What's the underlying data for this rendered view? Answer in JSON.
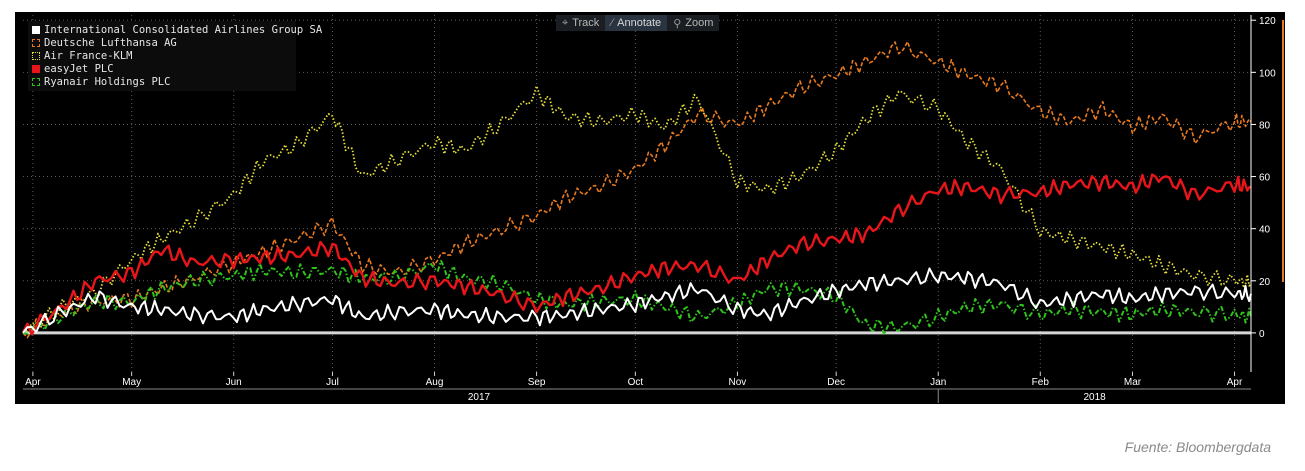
{
  "toolbar": {
    "track_label": "Track",
    "annotate_label": "Annotate",
    "zoom_label": "Zoom"
  },
  "source": "Fuente: Bloombergdata",
  "chart_data": {
    "type": "line",
    "ylim": [
      -15,
      122
    ],
    "yticks": [
      0,
      20,
      40,
      60,
      80,
      100,
      120
    ],
    "grid": true,
    "legend_position": "top-left",
    "x_range": [
      "2017-03-29",
      "2018-04-06"
    ],
    "month_ticks": [
      {
        "label": "Apr",
        "date": "2017-04-01"
      },
      {
        "label": "May",
        "date": "2017-05-01"
      },
      {
        "label": "Jun",
        "date": "2017-06-01"
      },
      {
        "label": "Jul",
        "date": "2017-07-01"
      },
      {
        "label": "Aug",
        "date": "2017-08-01"
      },
      {
        "label": "Sep",
        "date": "2017-09-01"
      },
      {
        "label": "Oct",
        "date": "2017-10-01"
      },
      {
        "label": "Nov",
        "date": "2017-11-01"
      },
      {
        "label": "Dec",
        "date": "2017-12-01"
      },
      {
        "label": "Jan",
        "date": "2018-01-01"
      },
      {
        "label": "Feb",
        "date": "2018-02-01"
      },
      {
        "label": "Mar",
        "date": "2018-03-01"
      },
      {
        "label": "Apr",
        "date": "2018-04-01"
      }
    ],
    "year_labels": [
      {
        "label": "2017",
        "from": "2017-03-29",
        "to": "2017-12-31"
      },
      {
        "label": "2018",
        "from": "2018-01-01",
        "to": "2018-04-06"
      }
    ],
    "series": [
      {
        "name": "International Consolidated Airlines Group SA",
        "color": "#ffffff",
        "style": "solid",
        "width": 2,
        "x": [
          "2017-03-29",
          "2017-04-10",
          "2017-04-20",
          "2017-05-01",
          "2017-05-10",
          "2017-05-20",
          "2017-06-01",
          "2017-06-10",
          "2017-06-20",
          "2017-07-01",
          "2017-07-10",
          "2017-07-20",
          "2017-08-01",
          "2017-08-10",
          "2017-08-20",
          "2017-09-01",
          "2017-09-10",
          "2017-09-20",
          "2017-10-01",
          "2017-10-10",
          "2017-10-20",
          "2017-11-01",
          "2017-11-10",
          "2017-11-20",
          "2017-12-01",
          "2017-12-10",
          "2017-12-20",
          "2018-01-01",
          "2018-01-10",
          "2018-01-20",
          "2018-02-01",
          "2018-02-10",
          "2018-02-20",
          "2018-03-01",
          "2018-03-10",
          "2018-03-20",
          "2018-04-01",
          "2018-04-06"
        ],
        "values": [
          0,
          8,
          14,
          10,
          9,
          7,
          6,
          9,
          11,
          13,
          6,
          8,
          9,
          7,
          6,
          6,
          7,
          9,
          11,
          14,
          17,
          9,
          7,
          12,
          16,
          19,
          20,
          22,
          21,
          19,
          11,
          13,
          15,
          13,
          15,
          16,
          15,
          15
        ]
      },
      {
        "name": "Deutsche Lufthansa AG",
        "color": "#e8791e",
        "style": "dashed",
        "width": 1.6,
        "x": [
          "2017-03-29",
          "2017-04-10",
          "2017-04-20",
          "2017-05-01",
          "2017-05-10",
          "2017-05-20",
          "2017-06-01",
          "2017-06-10",
          "2017-06-20",
          "2017-07-01",
          "2017-07-10",
          "2017-07-20",
          "2017-08-01",
          "2017-08-10",
          "2017-08-20",
          "2017-09-01",
          "2017-09-10",
          "2017-09-20",
          "2017-10-01",
          "2017-10-10",
          "2017-10-20",
          "2017-11-01",
          "2017-11-10",
          "2017-11-20",
          "2017-12-01",
          "2017-12-10",
          "2017-12-20",
          "2018-01-01",
          "2018-01-10",
          "2018-01-20",
          "2018-02-01",
          "2018-02-10",
          "2018-02-20",
          "2018-03-01",
          "2018-03-10",
          "2018-03-20",
          "2018-04-01",
          "2018-04-06"
        ],
        "values": [
          0,
          8,
          12,
          13,
          17,
          21,
          27,
          31,
          36,
          42,
          26,
          23,
          28,
          34,
          39,
          45,
          52,
          56,
          63,
          72,
          84,
          80,
          87,
          94,
          99,
          104,
          110,
          104,
          99,
          95,
          85,
          81,
          86,
          79,
          83,
          75,
          81,
          81
        ]
      },
      {
        "name": "Air France-KLM",
        "color": "#e6df38",
        "style": "dotted",
        "width": 1.8,
        "x": [
          "2017-03-29",
          "2017-04-10",
          "2017-04-20",
          "2017-05-01",
          "2017-05-10",
          "2017-05-20",
          "2017-06-01",
          "2017-06-10",
          "2017-06-20",
          "2017-07-01",
          "2017-07-10",
          "2017-07-20",
          "2017-08-01",
          "2017-08-10",
          "2017-08-20",
          "2017-09-01",
          "2017-09-10",
          "2017-09-20",
          "2017-10-01",
          "2017-10-10",
          "2017-10-20",
          "2017-11-01",
          "2017-11-10",
          "2017-11-20",
          "2017-12-01",
          "2017-12-10",
          "2017-12-20",
          "2018-01-01",
          "2018-01-10",
          "2018-01-20",
          "2018-02-01",
          "2018-02-10",
          "2018-02-20",
          "2018-03-01",
          "2018-03-10",
          "2018-03-20",
          "2018-04-01",
          "2018-04-06"
        ],
        "values": [
          0,
          10,
          16,
          28,
          36,
          43,
          53,
          66,
          72,
          84,
          60,
          66,
          73,
          70,
          79,
          92,
          83,
          81,
          84,
          79,
          90,
          58,
          55,
          60,
          70,
          82,
          92,
          86,
          73,
          63,
          39,
          36,
          33,
          30,
          26,
          22,
          20,
          19
        ]
      },
      {
        "name": "easyJet PLC",
        "color": "#e8151b",
        "style": "solid",
        "width": 2.4,
        "x": [
          "2017-03-29",
          "2017-04-10",
          "2017-04-20",
          "2017-05-01",
          "2017-05-10",
          "2017-05-20",
          "2017-06-01",
          "2017-06-10",
          "2017-06-20",
          "2017-07-01",
          "2017-07-10",
          "2017-07-20",
          "2017-08-01",
          "2017-08-10",
          "2017-08-20",
          "2017-09-01",
          "2017-09-10",
          "2017-09-20",
          "2017-10-01",
          "2017-10-10",
          "2017-10-20",
          "2017-11-01",
          "2017-11-10",
          "2017-11-20",
          "2017-12-01",
          "2017-12-10",
          "2017-12-20",
          "2018-01-01",
          "2018-01-10",
          "2018-01-20",
          "2018-02-01",
          "2018-02-10",
          "2018-02-20",
          "2018-03-01",
          "2018-03-10",
          "2018-03-20",
          "2018-04-01",
          "2018-04-06"
        ],
        "values": [
          0,
          10,
          20,
          23,
          32,
          27,
          28,
          29,
          30,
          33,
          21,
          19,
          20,
          18,
          15,
          10,
          14,
          17,
          22,
          25,
          26,
          20,
          28,
          34,
          36,
          38,
          47,
          55,
          56,
          53,
          54,
          57,
          58,
          56,
          60,
          53,
          57,
          56
        ]
      },
      {
        "name": "Ryanair Holdings PLC",
        "color": "#2fc21c",
        "style": "dashdot",
        "width": 2,
        "x": [
          "2017-03-29",
          "2017-04-10",
          "2017-04-20",
          "2017-05-01",
          "2017-05-10",
          "2017-05-20",
          "2017-06-01",
          "2017-06-10",
          "2017-06-20",
          "2017-07-01",
          "2017-07-10",
          "2017-07-20",
          "2017-08-01",
          "2017-08-10",
          "2017-08-20",
          "2017-09-01",
          "2017-09-10",
          "2017-09-20",
          "2017-10-01",
          "2017-10-10",
          "2017-10-20",
          "2017-11-01",
          "2017-11-10",
          "2017-11-20",
          "2017-12-01",
          "2017-12-10",
          "2017-12-20",
          "2018-01-01",
          "2018-01-10",
          "2018-01-20",
          "2018-02-01",
          "2018-02-10",
          "2018-02-20",
          "2018-03-01",
          "2018-03-10",
          "2018-03-20",
          "2018-04-01",
          "2018-04-06"
        ],
        "values": [
          0,
          7,
          12,
          12,
          17,
          20,
          22,
          24,
          23,
          24,
          21,
          21,
          26,
          21,
          19,
          13,
          11,
          12,
          13,
          10,
          6,
          11,
          17,
          17,
          14,
          3,
          2,
          6,
          10,
          11,
          7,
          9,
          8,
          7,
          9,
          8,
          7,
          6
        ]
      }
    ]
  }
}
